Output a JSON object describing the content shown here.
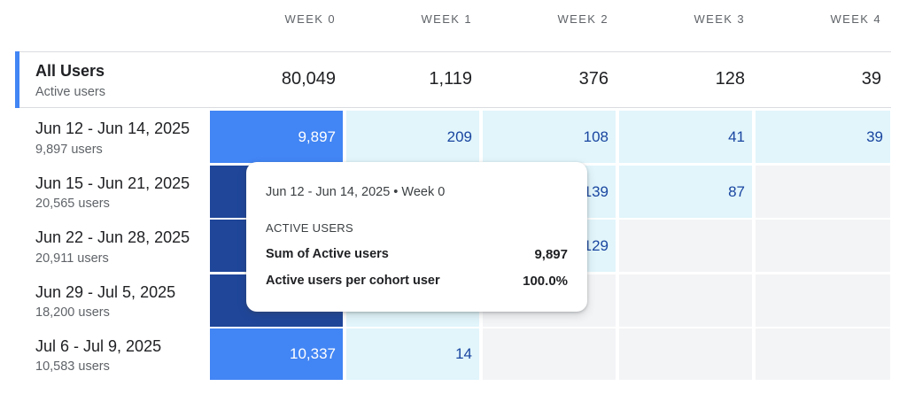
{
  "columns": [
    "WEEK 0",
    "WEEK 1",
    "WEEK 2",
    "WEEK 3",
    "WEEK 4"
  ],
  "all_users": {
    "title": "All Users",
    "subtitle": "Active users",
    "values": [
      "80,049",
      "1,119",
      "376",
      "128",
      "39"
    ]
  },
  "cohorts": [
    {
      "label": "Jun 12 - Jun 14, 2025",
      "users": "9,897 users",
      "values": [
        "9,897",
        "209",
        "108",
        "41",
        "39"
      ]
    },
    {
      "label": "Jun 15 - Jun 21, 2025",
      "users": "20,565 users",
      "values": [
        "",
        "",
        "139",
        "87",
        ""
      ]
    },
    {
      "label": "Jun 22 - Jun 28, 2025",
      "users": "20,911 users",
      "values": [
        "",
        "",
        "129",
        "",
        ""
      ]
    },
    {
      "label": "Jun 29 - Jul 5, 2025",
      "users": "18,200 users",
      "values": [
        "",
        "",
        "",
        "",
        ""
      ]
    },
    {
      "label": "Jul 6 - Jul 9, 2025",
      "users": "10,583 users",
      "values": [
        "10,337",
        "14",
        "",
        "",
        ""
      ]
    }
  ],
  "tooltip": {
    "title": "Jun 12 - Jun 14, 2025 • Week 0",
    "section": "ACTIVE USERS",
    "rows": [
      {
        "label": "Sum of Active users",
        "value": "9,897"
      },
      {
        "label": "Active users per cohort user",
        "value": "100.0%"
      }
    ]
  },
  "colors": {
    "accent": "#4285f4",
    "cell_dark": "#1f4699",
    "cell_blue": "#4285f4",
    "cell_light": "#e1f5fb",
    "cell_empty": "#f3f4f6",
    "text_dark_blue": "#1a46a0"
  }
}
